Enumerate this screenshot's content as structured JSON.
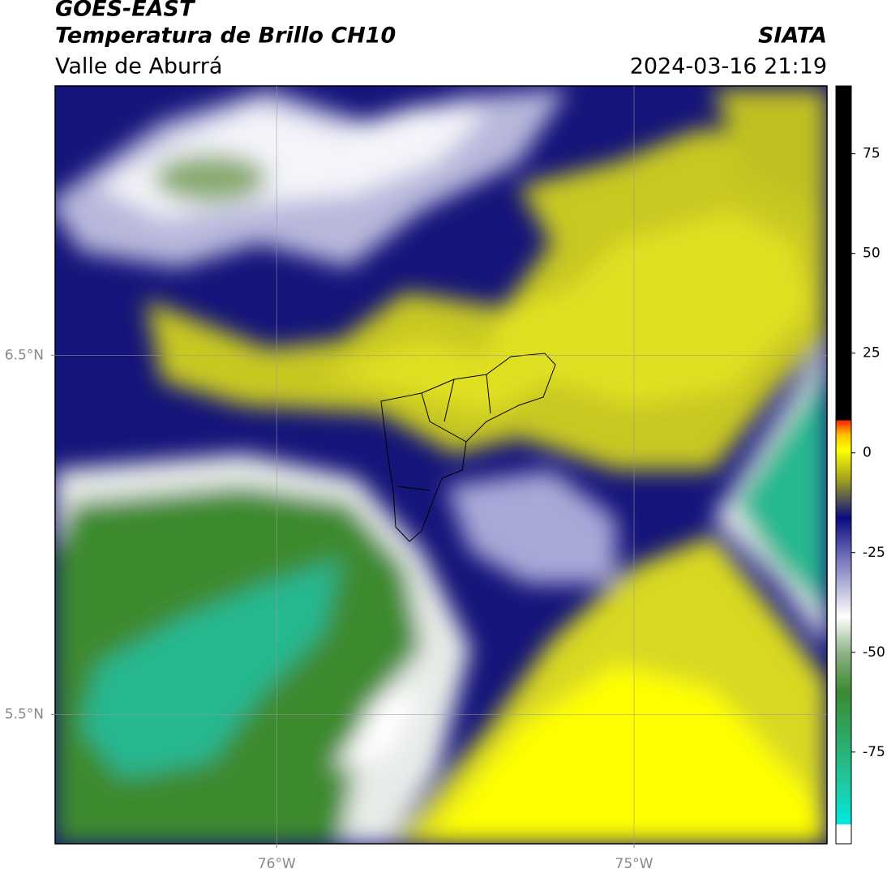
{
  "chart_data": {
    "type": "map",
    "title": "GOES-EAST",
    "subtitle": "Temperatura de Brillo CH10",
    "region": "Valle de Aburrá",
    "source": "SIATA",
    "datetime": "2024-03-16 21:19",
    "xlim": [
      -76.62,
      -74.46
    ],
    "ylim": [
      5.14,
      7.25
    ],
    "xticks": [
      {
        "value": -76,
        "label": "76°W"
      },
      {
        "value": -75,
        "label": "75°W"
      }
    ],
    "yticks": [
      {
        "value": 6.5,
        "label": "6.5°N"
      },
      {
        "value": 5.5,
        "label": "5.5°N"
      }
    ],
    "clim": [
      -98,
      92
    ],
    "cticks": [
      75,
      50,
      25,
      0,
      -25,
      -50,
      -75
    ],
    "grid": true
  }
}
